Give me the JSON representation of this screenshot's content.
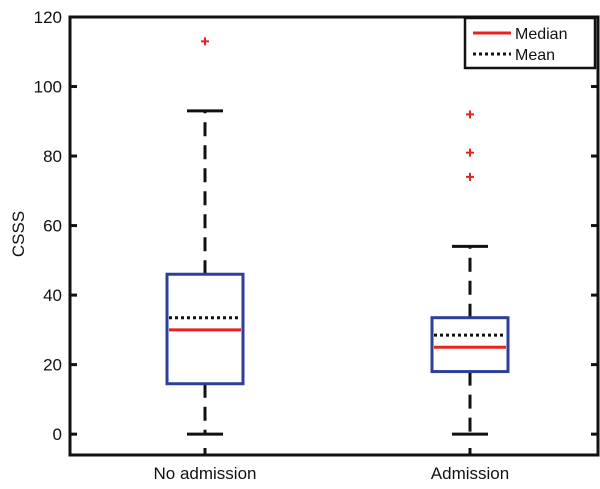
{
  "chart_data": {
    "type": "boxplot",
    "title": "",
    "xlabel": "",
    "ylabel": "CSSS",
    "ylim": [
      -6,
      120
    ],
    "yticks": [
      0,
      20,
      40,
      60,
      80,
      100,
      120
    ],
    "categories": [
      "No admission",
      "Admission"
    ],
    "boxes": [
      {
        "category": "No admission",
        "whisker_low": 0,
        "q1": 14.5,
        "median": 30,
        "mean": 33.5,
        "q3": 46,
        "whisker_high": 93,
        "outliers": [
          113
        ]
      },
      {
        "category": "Admission",
        "whisker_low": 0,
        "q1": 18,
        "median": 25,
        "mean": 28.5,
        "q3": 33.5,
        "whisker_high": 54,
        "outliers": [
          74,
          81,
          92
        ]
      }
    ],
    "legend": {
      "position": "top-right",
      "items": [
        {
          "label": "Median",
          "style": "solid",
          "color": "#e8231f"
        },
        {
          "label": "Mean",
          "style": "dotted",
          "color": "#111111"
        }
      ]
    },
    "colors": {
      "box": "#2e3f99",
      "median": "#e8231f",
      "mean": "#111111",
      "whisker": "#111111",
      "outlier": "#e8231f",
      "axis": "#111111"
    },
    "grid": false
  }
}
